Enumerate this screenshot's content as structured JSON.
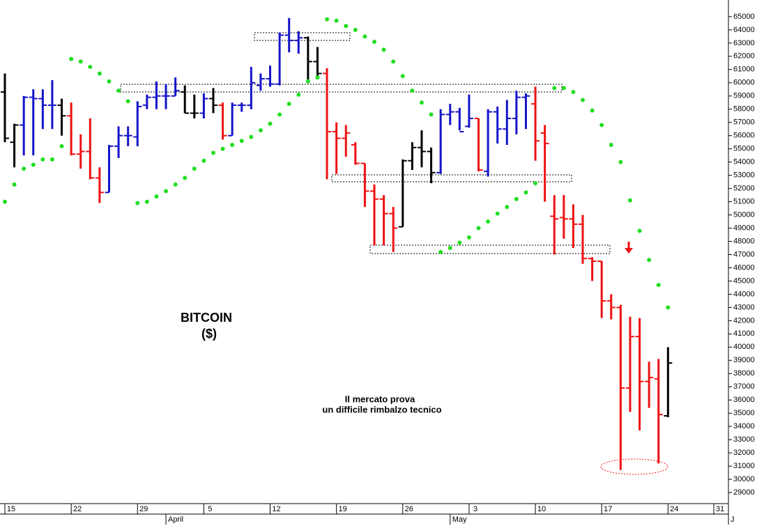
{
  "chart_data": {
    "type": "ohlc",
    "title": "BITCOIN",
    "subtitle": "($)",
    "annotation": [
      "Il mercato prova",
      "un difficile rimbalzo tecnico"
    ],
    "categories": [
      "15",
      null,
      null,
      null,
      null,
      null,
      null,
      "22",
      null,
      null,
      null,
      null,
      null,
      null,
      "29",
      null,
      null,
      null,
      null,
      null,
      null,
      "5",
      null,
      null,
      null,
      null,
      null,
      null,
      "12",
      null,
      null,
      null,
      null,
      null,
      null,
      "19",
      null,
      null,
      null,
      null,
      null,
      null,
      "26",
      null,
      null,
      null,
      null,
      null,
      null,
      "3",
      null,
      null,
      null,
      null,
      null,
      null,
      "10",
      null,
      null,
      null,
      null,
      null,
      null,
      "17",
      null,
      null,
      null,
      null,
      null,
      null,
      "24"
    ],
    "extra_day_label": "31",
    "month_labels": [
      "April",
      "May",
      "J"
    ],
    "open": [
      59300,
      55500,
      56800,
      58900,
      58800,
      58300,
      58300,
      57500,
      54600,
      54800,
      52800,
      51700,
      55200,
      56000,
      55900,
      58300,
      58900,
      59000,
      59000,
      59300,
      57700,
      57700,
      58800,
      58300,
      56000,
      58300,
      58300,
      59800,
      60300,
      59900,
      63600,
      63200,
      63400,
      61600,
      60700,
      56300,
      55800,
      55300,
      53900,
      51800,
      51200,
      50100,
      49100,
      54100,
      55100,
      54800,
      53200,
      57600,
      57800,
      56700,
      57300,
      53300,
      57800,
      56500,
      57300,
      58900,
      58400,
      56200,
      49900,
      49800,
      49700,
      49300,
      46700,
      46500,
      43500,
      43000,
      36900,
      40800,
      37400,
      37600,
      34800
    ],
    "high": [
      60700,
      56900,
      59000,
      59500,
      59500,
      60200,
      58800,
      58500,
      56100,
      57300,
      53600,
      55300,
      56700,
      56700,
      58600,
      59100,
      60100,
      59900,
      60400,
      59800,
      59100,
      59200,
      59600,
      58500,
      58500,
      58500,
      61200,
      60700,
      61300,
      63800,
      64900,
      63900,
      63500,
      62700,
      61100,
      57000,
      56800,
      55500,
      53900,
      52300,
      51500,
      50600,
      54200,
      55500,
      56400,
      55100,
      58000,
      58400,
      58100,
      59100,
      57300,
      58000,
      58200,
      58700,
      59400,
      59200,
      59700,
      56800,
      51500,
      51500,
      50800,
      50000,
      46800,
      46500,
      44000,
      43200,
      42300,
      42200,
      38900,
      39100,
      40000
    ],
    "low": [
      55500,
      53600,
      54500,
      54500,
      56500,
      56500,
      56000,
      54500,
      53500,
      52700,
      50900,
      51700,
      54300,
      55200,
      55200,
      58000,
      58000,
      58000,
      59000,
      57700,
      57300,
      57300,
      57700,
      55700,
      56000,
      57800,
      58000,
      59400,
      59700,
      59800,
      62300,
      62200,
      60200,
      60300,
      52700,
      53100,
      54400,
      53800,
      50600,
      47700,
      47700,
      47200,
      49100,
      53400,
      53600,
      52400,
      53100,
      56800,
      56400,
      56600,
      53300,
      52900,
      55400,
      55300,
      56100,
      56500,
      54100,
      51000,
      47000,
      48200,
      47500,
      46300,
      45000,
      42200,
      42100,
      30700,
      35100,
      33700,
      35400,
      31200,
      34700
    ],
    "close": [
      55800,
      56800,
      58900,
      58800,
      58300,
      58300,
      57500,
      54600,
      54800,
      52800,
      51700,
      55200,
      56000,
      56000,
      58200,
      58900,
      59000,
      59000,
      59400,
      57700,
      57700,
      58800,
      58300,
      56000,
      58300,
      58300,
      60000,
      60300,
      59900,
      63600,
      63200,
      63400,
      61600,
      60700,
      56300,
      55800,
      56200,
      53900,
      51800,
      51200,
      50100,
      49000,
      54100,
      55100,
      54800,
      53200,
      57600,
      57800,
      56300,
      57300,
      53400,
      57800,
      56500,
      57300,
      58900,
      59000,
      55600,
      55400,
      49700,
      49700,
      49300,
      46700,
      46500,
      43500,
      43000,
      36900,
      40800,
      37400,
      37700,
      34900,
      38800
    ],
    "bar_colors": [
      "black",
      "black",
      "#1414c8",
      "#1414c8",
      "#1414c8",
      "#1414c8",
      "black",
      "#ee1111",
      "#ee1111",
      "#ee1111",
      "#ee1111",
      "#1414c8",
      "#1414c8",
      "#1414c8",
      "#1414c8",
      "#1414c8",
      "#1414c8",
      "#1414c8",
      "#1414c8",
      "black",
      "black",
      "#1414c8",
      "black",
      "#ee1111",
      "#1414c8",
      "#1414c8",
      "#1414c8",
      "#1414c8",
      "#1414c8",
      "#1414c8",
      "#1414c8",
      "#1414c8",
      "black",
      "black",
      "#ee1111",
      "#ee1111",
      "#ee1111",
      "#ee1111",
      "#ee1111",
      "#ee1111",
      "#ee1111",
      "#ee1111",
      "black",
      "black",
      "black",
      "black",
      "#1414c8",
      "#1414c8",
      "#1414c8",
      "#1414c8",
      "#ee1111",
      "#1414c8",
      "#1414c8",
      "#1414c8",
      "#1414c8",
      "#1414c8",
      "#ee1111",
      "#ee1111",
      "#ee1111",
      "#ee1111",
      "#ee1111",
      "#ee1111",
      "#ee1111",
      "#ee1111",
      "#ee1111",
      "#ee1111",
      "#ee1111",
      "#ee1111",
      "#ee1111",
      "#ee1111",
      "black"
    ],
    "sar": [
      51000,
      52300,
      53500,
      53800,
      54200,
      54200,
      55200,
      61800,
      61600,
      61200,
      60700,
      60100,
      59400,
      58600,
      50900,
      51000,
      51400,
      51800,
      52300,
      52800,
      53500,
      54100,
      54700,
      55000,
      55300,
      55600,
      55900,
      56400,
      56900,
      57600,
      58400,
      59100,
      60100,
      60400,
      64800,
      64700,
      64300,
      64000,
      63500,
      63100,
      62500,
      61600,
      60500,
      59400,
      58500,
      57600,
      47200,
      47500,
      47900,
      48300,
      49000,
      49500,
      50100,
      50600,
      51200,
      51700,
      52400,
      null,
      59600,
      59600,
      59300,
      58700,
      57900,
      56800,
      55300,
      54000,
      51100,
      48800,
      46600,
      44700,
      43000
    ],
    "sar_color": "#22dd22",
    "ylim": [
      28160,
      66260
    ],
    "yticks": [
      29000,
      30000,
      31000,
      32000,
      33000,
      34000,
      35000,
      36000,
      37000,
      38000,
      39000,
      40000,
      41000,
      42000,
      43000,
      44000,
      45000,
      46000,
      47000,
      48000,
      49000,
      50000,
      51000,
      52000,
      53000,
      54000,
      55000,
      56000,
      57000,
      58000,
      59000,
      60000,
      61000,
      62000,
      63000,
      64000,
      65000
    ]
  }
}
